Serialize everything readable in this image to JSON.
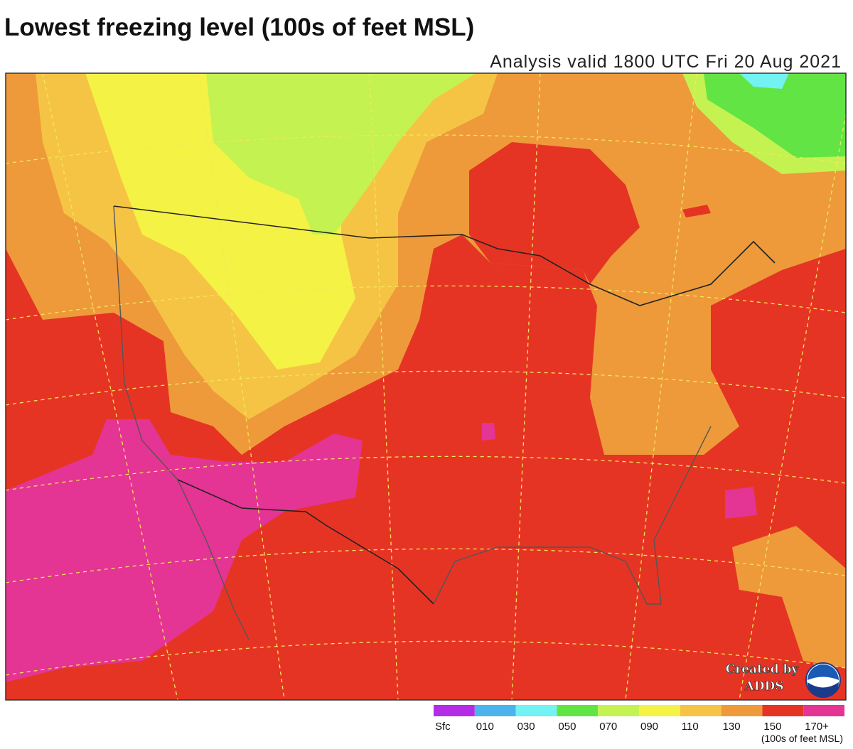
{
  "header": {
    "title": "Lowest freezing level (100s of feet MSL)",
    "subtitle": "Analysis valid 1800 UTC Fri 20 Aug 2021"
  },
  "legend": {
    "items": [
      {
        "label": "Sfc",
        "color": "#b42ce6"
      },
      {
        "label": "010",
        "color": "#4cb4ec"
      },
      {
        "label": "030",
        "color": "#72f2f2"
      },
      {
        "label": "050",
        "color": "#62e444"
      },
      {
        "label": "070",
        "color": "#c4f250"
      },
      {
        "label": "090",
        "color": "#f4f244"
      },
      {
        "label": "110",
        "color": "#f6c444"
      },
      {
        "label": "130",
        "color": "#ee9a3a"
      },
      {
        "label": "150",
        "color": "#e63424"
      },
      {
        "label": "170+",
        "color": "#e43494"
      }
    ],
    "units": "(100s of feet MSL)"
  },
  "credit": {
    "line1": "Created by",
    "line2": "ADDS"
  }
}
